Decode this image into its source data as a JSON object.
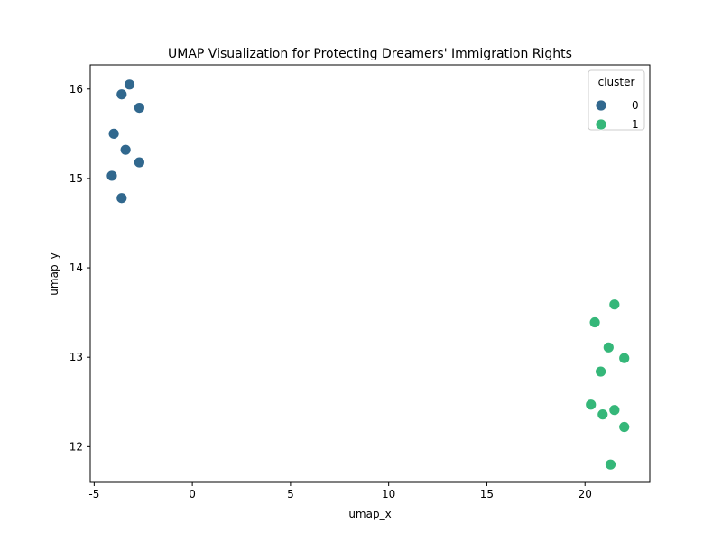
{
  "chart_data": {
    "type": "scatter",
    "title": "UMAP Visualization for Protecting Dreamers' Immigration Rights",
    "xlabel": "umap_x",
    "ylabel": "umap_y",
    "xlim": [
      -5.2,
      23.3
    ],
    "ylim": [
      11.6,
      16.27
    ],
    "xticks": [
      -5,
      0,
      5,
      10,
      15,
      20
    ],
    "yticks": [
      12,
      13,
      14,
      15,
      16
    ],
    "grid": false,
    "legend": {
      "title": "cluster",
      "placement": "top-right"
    },
    "series": [
      {
        "name": "0",
        "color": "#31688e",
        "points": [
          {
            "x": -3.2,
            "y": 16.05
          },
          {
            "x": -3.6,
            "y": 15.94
          },
          {
            "x": -2.7,
            "y": 15.79
          },
          {
            "x": -4.0,
            "y": 15.5
          },
          {
            "x": -3.4,
            "y": 15.32
          },
          {
            "x": -2.7,
            "y": 15.18
          },
          {
            "x": -4.1,
            "y": 15.03
          },
          {
            "x": -3.6,
            "y": 14.78
          }
        ]
      },
      {
        "name": "1",
        "color": "#35b779",
        "points": [
          {
            "x": 21.5,
            "y": 13.59
          },
          {
            "x": 20.5,
            "y": 13.39
          },
          {
            "x": 21.2,
            "y": 13.11
          },
          {
            "x": 22.0,
            "y": 12.99
          },
          {
            "x": 20.8,
            "y": 12.84
          },
          {
            "x": 20.3,
            "y": 12.47
          },
          {
            "x": 21.5,
            "y": 12.41
          },
          {
            "x": 20.9,
            "y": 12.36
          },
          {
            "x": 22.0,
            "y": 12.22
          },
          {
            "x": 21.3,
            "y": 11.8
          }
        ]
      }
    ]
  }
}
